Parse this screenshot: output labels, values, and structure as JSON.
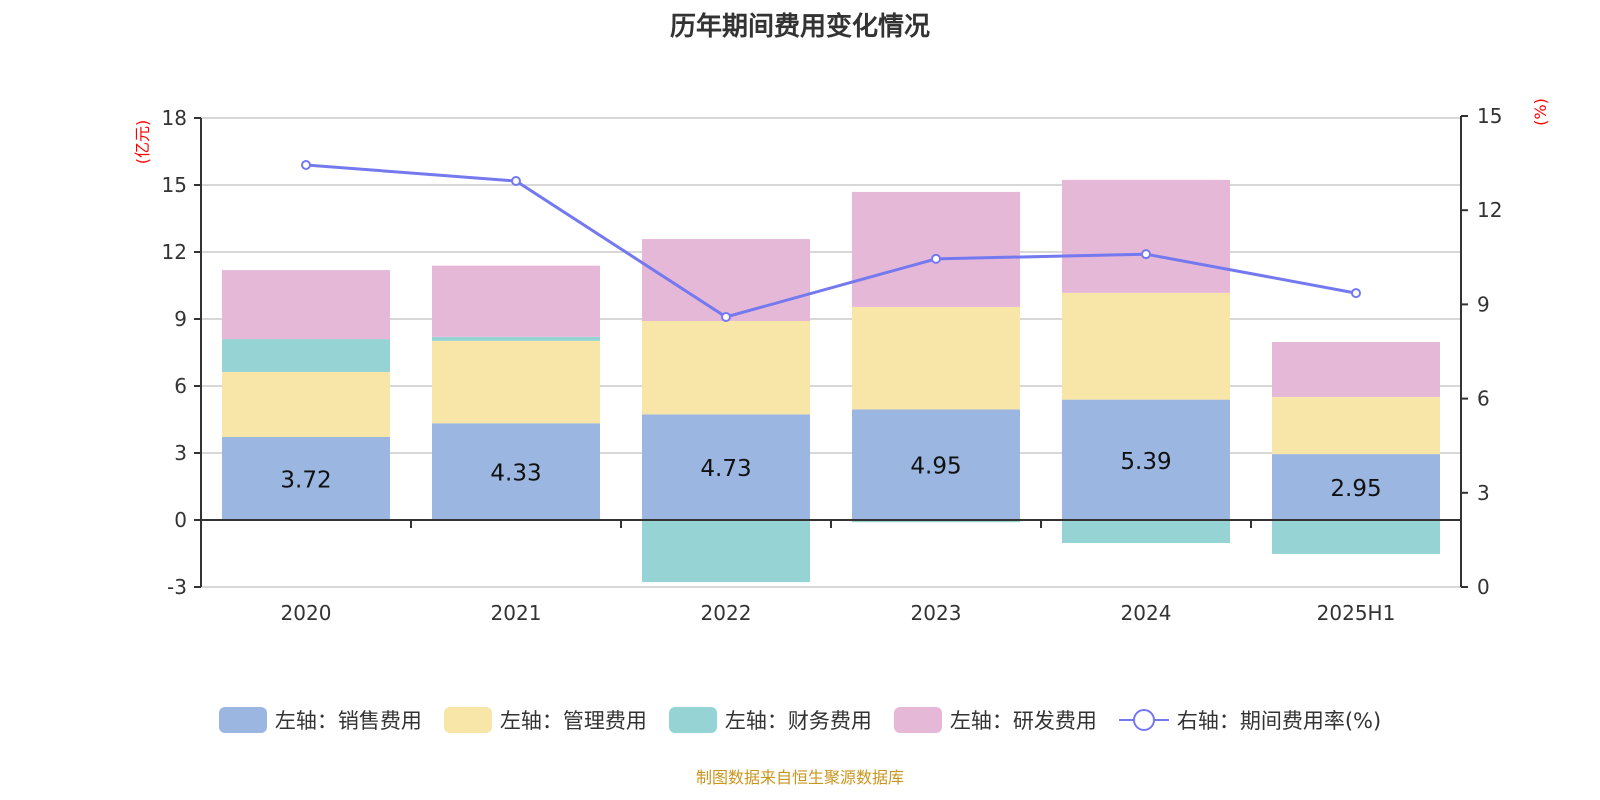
{
  "title": "历年期间费用变化情况",
  "source": "制图数据来自恒生聚源数据库",
  "chart_data": {
    "type": "bar",
    "title": "历年期间费用变化情况",
    "categories": [
      "2020",
      "2021",
      "2022",
      "2023",
      "2024",
      "2025H1"
    ],
    "y_left": {
      "label": "(亿元)",
      "range": [
        -3,
        18
      ],
      "ticks": [
        -3,
        0,
        3,
        6,
        9,
        12,
        15,
        18
      ]
    },
    "y_right": {
      "label": "(%)",
      "range": [
        0,
        15
      ],
      "ticks": [
        0,
        3,
        6,
        9,
        12,
        15
      ]
    },
    "grid": true,
    "legend_position": "bottom",
    "series": [
      {
        "name": "左轴：销售费用",
        "type": "bar",
        "stack": true,
        "color": "#9bb6e0",
        "values": [
          3.72,
          4.33,
          4.73,
          4.95,
          5.39,
          2.95
        ],
        "show_labels": true
      },
      {
        "name": "左轴：管理费用",
        "type": "bar",
        "stack": true,
        "color": "#f7e6a8",
        "values": [
          2.91,
          3.69,
          4.18,
          4.59,
          4.78,
          2.56
        ]
      },
      {
        "name": "左轴：财务费用",
        "type": "bar",
        "stack": true,
        "color": "#95d3d4",
        "values": [
          1.47,
          0.18,
          -2.78,
          -0.1,
          -1.03,
          -1.52
        ]
      },
      {
        "name": "左轴：研发费用",
        "type": "bar",
        "stack": true,
        "color": "#e6b8d8",
        "values": [
          3.09,
          3.19,
          3.67,
          5.15,
          5.06,
          2.46
        ]
      },
      {
        "name": "右轴：期间费用率(%)",
        "type": "line",
        "axis": "right",
        "color": "#7479f0",
        "values": [
          13.44,
          12.93,
          8.6,
          10.45,
          10.6,
          9.36
        ]
      }
    ]
  }
}
